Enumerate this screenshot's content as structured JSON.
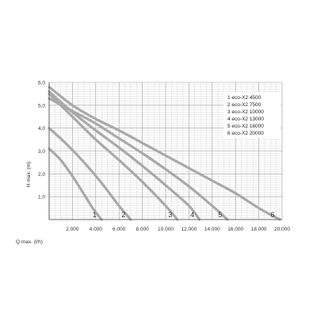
{
  "chart_data": {
    "type": "line",
    "xlabel": "Q max. (l/h)",
    "ylabel": "H max. (m)",
    "xlim": [
      0,
      20000
    ],
    "ylim": [
      0,
      6
    ],
    "x_ticks": [
      {
        "value": 2000,
        "label": "2.000"
      },
      {
        "value": 4000,
        "label": "4.000"
      },
      {
        "value": 6000,
        "label": "6.000"
      },
      {
        "value": 8000,
        "label": "8.000"
      },
      {
        "value": 10000,
        "label": "10.000"
      },
      {
        "value": 12000,
        "label": "12.000"
      },
      {
        "value": 14000,
        "label": "14.000"
      },
      {
        "value": 16000,
        "label": "16.000"
      },
      {
        "value": 18000,
        "label": "18.000"
      },
      {
        "value": 20000,
        "label": "20.000"
      }
    ],
    "y_ticks": [
      {
        "value": 1,
        "label": "1,0"
      },
      {
        "value": 2,
        "label": "2,0"
      },
      {
        "value": 3,
        "label": "3,0"
      },
      {
        "value": 4,
        "label": "4,0"
      },
      {
        "value": 5,
        "label": "5,0"
      },
      {
        "value": 6,
        "label": "6,0"
      }
    ],
    "grid": true,
    "legend_position": "top-right",
    "curve_color": "#a9a9a9",
    "series": [
      {
        "label": "1",
        "name": "1 eco-X2 4500",
        "x": [
          0,
          1000,
          2000,
          3000,
          3800,
          4500
        ],
        "y": [
          3.1,
          2.6,
          1.9,
          1.1,
          0.45,
          0
        ]
      },
      {
        "label": "2",
        "name": "2 eco-X2 7500",
        "x": [
          0,
          1500,
          3000,
          4500,
          6000,
          7000
        ],
        "y": [
          4.0,
          3.3,
          2.5,
          1.6,
          0.6,
          0
        ]
      },
      {
        "label": "3",
        "name": "3 eco-X2 10000",
        "x": [
          0,
          2000,
          4000,
          6000,
          8000,
          10000,
          11000
        ],
        "y": [
          5.5,
          4.5,
          3.5,
          2.6,
          1.65,
          0.6,
          0
        ]
      },
      {
        "label": "4",
        "name": "4 eco-X2 13000",
        "x": [
          0,
          2000,
          4000,
          6000,
          8000,
          10000,
          12000,
          12900
        ],
        "y": [
          5.6,
          4.7,
          3.9,
          3.15,
          2.35,
          1.5,
          0.6,
          0
        ]
      },
      {
        "label": "5",
        "name": "5 eco-X2 16000",
        "x": [
          0,
          2000,
          4000,
          6000,
          8000,
          10000,
          12000,
          14000,
          15300
        ],
        "y": [
          5.3,
          4.75,
          4.2,
          3.55,
          2.9,
          2.2,
          1.45,
          0.6,
          0
        ]
      },
      {
        "label": "6",
        "name": "6 eco-X2 20000",
        "x": [
          0,
          2000,
          4000,
          6000,
          8000,
          10000,
          12000,
          14000,
          16000,
          18000,
          19800
        ],
        "y": [
          5.8,
          5.0,
          4.4,
          3.9,
          3.35,
          2.8,
          2.25,
          1.7,
          1.15,
          0.5,
          0
        ]
      }
    ]
  }
}
